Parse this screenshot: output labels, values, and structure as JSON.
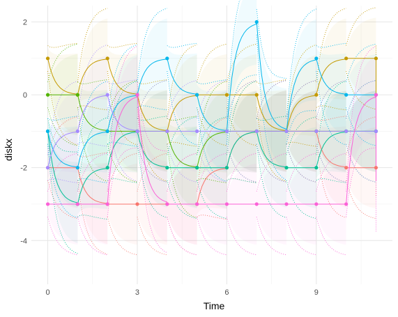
{
  "chart_data": {
    "type": "line",
    "title": "",
    "xlabel": "Time",
    "ylabel": "diskx",
    "xlim": [
      -0.55,
      11.55
    ],
    "ylim": [
      -5.2,
      2.45
    ],
    "x_ticks": [
      0,
      3,
      6,
      9
    ],
    "x_tick_labels": [
      "0",
      "3",
      "6",
      "9"
    ],
    "y_ticks": [
      -4,
      -2,
      0,
      2
    ],
    "y_tick_labels": [
      "-4",
      "-2",
      "0",
      "2"
    ],
    "grid": true,
    "legend": "none",
    "series": [
      {
        "color": "#F8766D",
        "points": [
          [
            0,
            -2
          ],
          [
            1,
            -2
          ],
          [
            2,
            -3
          ],
          [
            3,
            -3
          ],
          [
            4,
            -3
          ],
          [
            5,
            -3
          ],
          [
            6,
            -2
          ],
          [
            7,
            -1
          ],
          [
            8,
            -1
          ],
          [
            9,
            -1
          ],
          [
            10,
            -2
          ],
          [
            11,
            -2
          ]
        ],
        "end": -1.4
      },
      {
        "color": "#C49A00",
        "points": [
          [
            0,
            1
          ],
          [
            1,
            0
          ],
          [
            2,
            1
          ],
          [
            3,
            0
          ],
          [
            4,
            -1
          ],
          [
            5,
            0
          ],
          [
            6,
            0
          ],
          [
            7,
            0
          ],
          [
            8,
            -1
          ],
          [
            9,
            0
          ],
          [
            10,
            1
          ],
          [
            11,
            1
          ]
        ],
        "end": -0.3
      },
      {
        "color": "#53B400",
        "points": [
          [
            0,
            0
          ],
          [
            1,
            0
          ],
          [
            2,
            -1
          ],
          [
            3,
            -1
          ],
          [
            4,
            -1
          ],
          [
            5,
            -2
          ],
          [
            6,
            -1
          ],
          [
            7,
            -1
          ],
          [
            8,
            -1
          ],
          [
            9,
            -1
          ],
          [
            10,
            -1
          ],
          [
            11,
            -1
          ]
        ],
        "end": -0.4
      },
      {
        "color": "#00C094",
        "points": [
          [
            0,
            -1
          ],
          [
            1,
            -3
          ],
          [
            2,
            -2
          ],
          [
            3,
            -1
          ],
          [
            4,
            -2
          ],
          [
            5,
            -2
          ],
          [
            6,
            -2
          ],
          [
            7,
            -1
          ],
          [
            8,
            -2
          ],
          [
            9,
            -2
          ],
          [
            10,
            -1
          ],
          [
            11,
            -1
          ]
        ],
        "end": -0.6
      },
      {
        "color": "#00B6EB",
        "points": [
          [
            0,
            -1
          ],
          [
            1,
            -2
          ],
          [
            2,
            -1
          ],
          [
            3,
            0
          ],
          [
            4,
            1
          ],
          [
            5,
            0
          ],
          [
            6,
            -1
          ],
          [
            7,
            2
          ],
          [
            8,
            -1
          ],
          [
            9,
            1
          ],
          [
            10,
            0
          ],
          [
            11,
            0
          ]
        ],
        "end": -0.3
      },
      {
        "color": "#A58AFF",
        "points": [
          [
            0,
            -2
          ],
          [
            1,
            -1
          ],
          [
            2,
            0
          ],
          [
            3,
            -1
          ],
          [
            4,
            -1
          ],
          [
            5,
            -1
          ],
          [
            6,
            -1
          ],
          [
            7,
            -1
          ],
          [
            8,
            -1
          ],
          [
            9,
            -1
          ],
          [
            10,
            -1
          ],
          [
            11,
            -1
          ]
        ],
        "end": -0.9
      },
      {
        "color": "#FB61D7",
        "points": [
          [
            0,
            -3
          ],
          [
            1,
            -3
          ],
          [
            2,
            -3
          ],
          [
            3,
            0
          ],
          [
            4,
            -3
          ],
          [
            5,
            -3
          ],
          [
            6,
            -3
          ],
          [
            7,
            -3
          ],
          [
            8,
            -3
          ],
          [
            9,
            -3
          ],
          [
            10,
            -3
          ],
          [
            11,
            0
          ]
        ],
        "end": -2.4
      }
    ]
  }
}
